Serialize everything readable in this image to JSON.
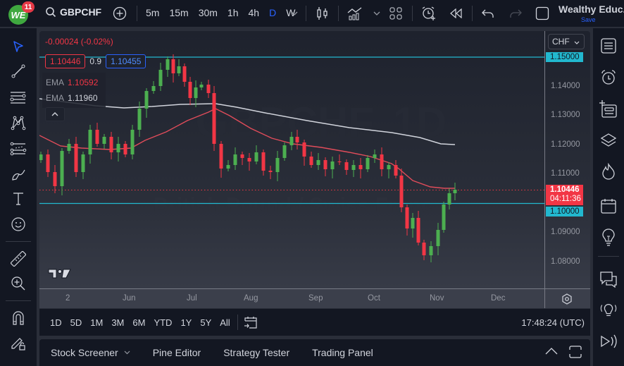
{
  "topbar": {
    "logo_text": "WE",
    "notifications": "11",
    "symbol": "GBPCHF",
    "intervals": [
      "5m",
      "15m",
      "30m",
      "1h",
      "4h",
      "D",
      "W"
    ],
    "active_interval": "D",
    "account_name": "Wealthy Educ...",
    "save_label": "Save"
  },
  "legend": {
    "change": "-0.00024 (-0.02%)",
    "bid": "1.10446",
    "spread": "0.9",
    "ask": "1.10455",
    "ema_label": "EMA",
    "ema_fast_value": "1.10592",
    "ema_slow_value": "1.11960"
  },
  "price_axis": {
    "currency": "CHF",
    "ticks": [
      "1.15000",
      "1.14000",
      "1.13000",
      "1.12000",
      "1.11000",
      "1.10000",
      "1.09000",
      "1.08000"
    ],
    "current_price": "1.10446",
    "countdown": "04:11:36",
    "hline_top": "1.15000",
    "hline_bottom": "1.10000"
  },
  "time_axis": {
    "ticks": [
      "2",
      "Jun",
      "Jul",
      "Aug",
      "Sep",
      "Oct",
      "Nov",
      "Dec"
    ]
  },
  "range_bar": {
    "ranges": [
      "1D",
      "5D",
      "1M",
      "3M",
      "6M",
      "YTD",
      "1Y",
      "5Y",
      "All"
    ],
    "clock": "17:48:24 (UTC)"
  },
  "bottom_panel": {
    "tabs": [
      "Stock Screener",
      "Pine Editor",
      "Strategy Tester",
      "Trading Panel"
    ]
  },
  "watermark": {
    "line1": "GBPCHF, 1D",
    "line2": "British Pound / Swiss Franc"
  },
  "colors": {
    "up": "#4caf50",
    "down": "#f23645",
    "ema_fast": "#e04c5a",
    "ema_slow": "#d1d4dc",
    "hline": "#22b8cf",
    "active": "#2962ff"
  }
}
